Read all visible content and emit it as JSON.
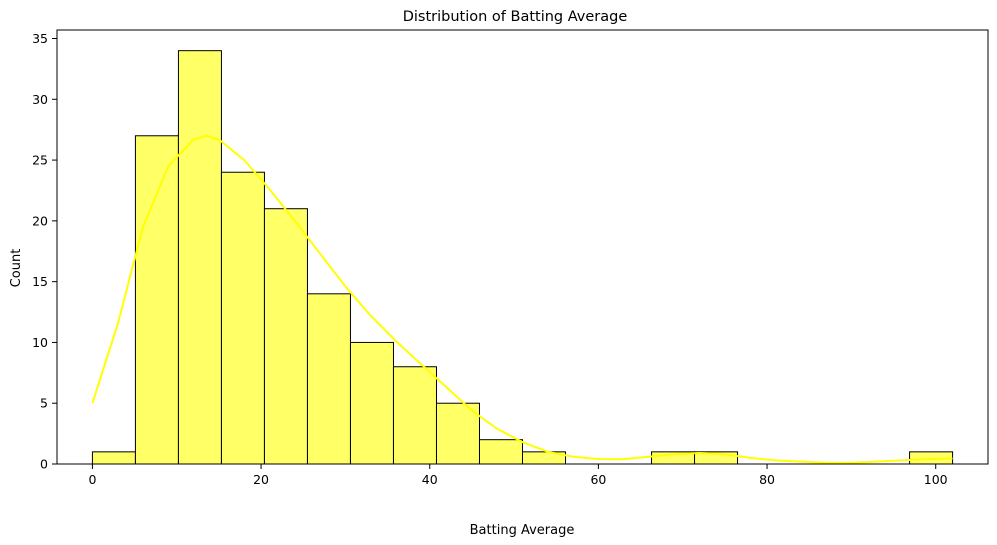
{
  "chart_data": {
    "type": "bar",
    "title": "Distribution of Batting Average",
    "xlabel": "Batting Average",
    "ylabel": "Count",
    "bin_edges": [
      0,
      5.1,
      10.2,
      15.3,
      20.4,
      25.5,
      30.6,
      35.7,
      40.8,
      45.9,
      51.0,
      56.1,
      61.2,
      66.3,
      71.4,
      76.5,
      81.6,
      86.7,
      91.8,
      96.9,
      102.0
    ],
    "values": [
      1,
      27,
      34,
      24,
      21,
      14,
      10,
      8,
      5,
      2,
      1,
      0,
      0,
      1,
      1,
      0,
      0,
      0,
      0,
      1
    ],
    "kde": {
      "x": [
        0,
        3,
        6,
        9,
        12,
        13.5,
        15,
        18,
        21,
        24,
        27,
        30,
        33,
        36,
        39,
        42,
        45,
        48,
        51,
        54,
        57,
        60,
        63,
        66,
        69,
        72,
        75,
        78,
        81,
        84,
        87,
        90,
        93,
        96,
        99,
        102
      ],
      "y": [
        5.0,
        11.5,
        19.5,
        24.5,
        26.7,
        27.0,
        26.7,
        25.0,
        22.6,
        20.0,
        17.3,
        14.6,
        12.2,
        10.1,
        8.2,
        6.3,
        4.4,
        2.9,
        1.8,
        1.0,
        0.6,
        0.4,
        0.4,
        0.6,
        0.8,
        0.9,
        0.8,
        0.5,
        0.3,
        0.2,
        0.1,
        0.1,
        0.2,
        0.3,
        0.4,
        0.45
      ]
    },
    "xlim": [
      -4.2,
      106.2
    ],
    "ylim": [
      0,
      35.7
    ],
    "xticks": [
      0,
      20,
      40,
      60,
      80,
      100
    ],
    "yticks": [
      0,
      5,
      10,
      15,
      20,
      25,
      30,
      35
    ],
    "bar_color": "#ffff66",
    "bar_edge_color": "#000000",
    "kde_color": "#ffff00",
    "grid": false
  }
}
